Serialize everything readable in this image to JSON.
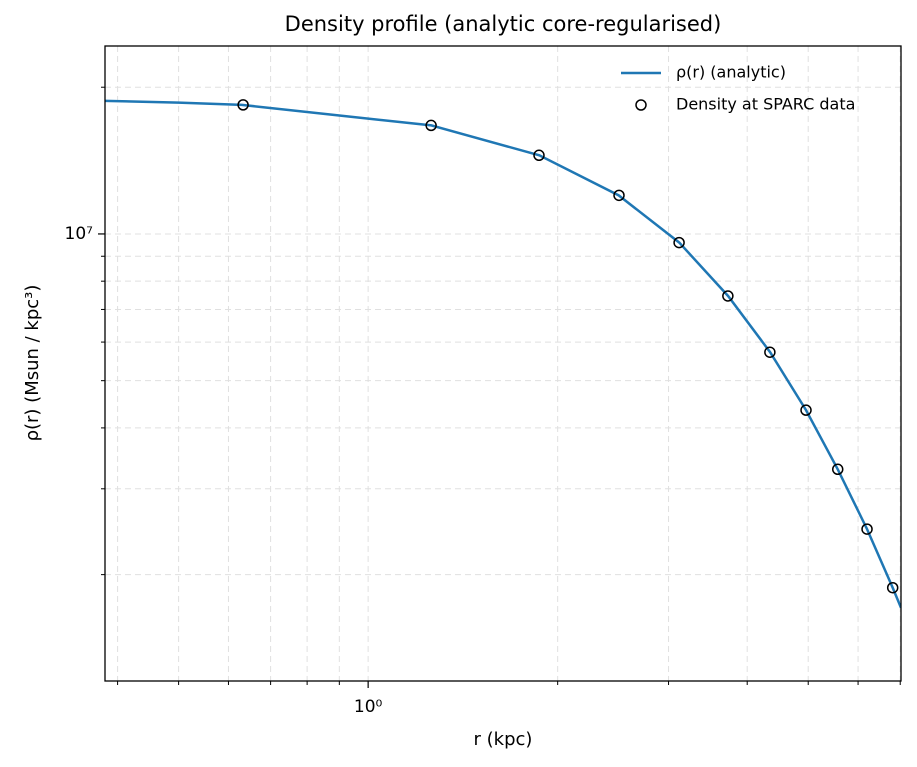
{
  "chart_data": {
    "type": "line",
    "title": "Density profile (analytic core-regularised)",
    "xlabel": "r (kpc)",
    "ylabel": "ρ(r) (Msun / kpc³)",
    "xscale": "log",
    "yscale": "log",
    "xlim": [
      0.382,
      7.02
    ],
    "ylim": [
      1210000,
      24300000
    ],
    "xticks": [
      {
        "value": 1,
        "label": "10⁰"
      }
    ],
    "xminorticks": [
      0.4,
      0.5,
      0.6,
      0.7,
      0.8,
      0.9,
      2,
      3,
      4,
      5,
      6,
      7
    ],
    "yticks": [
      {
        "value": 10000000,
        "label": "10⁷"
      }
    ],
    "yminorticks": [
      2000000,
      3000000,
      4000000,
      5000000,
      6000000,
      7000000,
      8000000,
      9000000,
      20000000
    ],
    "grid": true,
    "legend": "upper right",
    "series": [
      {
        "name": "ρ(r) (analytic)",
        "style": "line",
        "color": "#1f77b4",
        "x": [
          0.382,
          0.5,
          0.63,
          0.9,
          1.26,
          1.87,
          2.5,
          3.12,
          3.73,
          4.35,
          4.96,
          5.57,
          6.2,
          6.81,
          7.02
        ],
        "values": [
          18750000,
          18600000,
          18400000,
          17500000,
          16700000,
          14500000,
          12000000,
          9600000,
          7460000,
          5720000,
          4350000,
          3290000,
          2480000,
          1880000,
          1710000
        ]
      },
      {
        "name": "Density at SPARC data",
        "style": "markers",
        "color": "#000000",
        "x": [
          0.633,
          1.259,
          1.868,
          2.503,
          3.118,
          3.727,
          4.346,
          4.96,
          5.57,
          6.2,
          6.81
        ],
        "values": [
          18400000,
          16700000,
          14500000,
          12000000,
          9600000,
          7460000,
          5720000,
          4350000,
          3290000,
          2480000,
          1880000
        ]
      }
    ]
  }
}
